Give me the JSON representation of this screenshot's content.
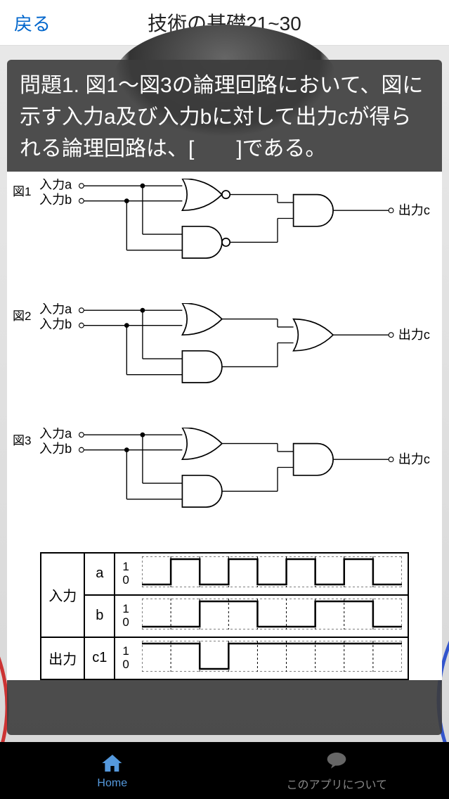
{
  "header": {
    "back_label": "戻る",
    "title": "技術の基礎21~30"
  },
  "question": {
    "text": "問題1. 図1～図3の論理回路において、図に示す入力a及び入力bに対して出力cが得られる論理回路は、[　　]である。"
  },
  "circuits": [
    {
      "label": "図1",
      "input_a": "入力a",
      "input_b": "入力b",
      "output": "出力c",
      "gate_top": "nor",
      "gate_bot": "nand",
      "gate_out": "and"
    },
    {
      "label": "図2",
      "input_a": "入力a",
      "input_b": "入力b",
      "output": "出力c",
      "gate_top": "or",
      "gate_bot": "and",
      "gate_out": "or"
    },
    {
      "label": "図3",
      "input_a": "入力a",
      "input_b": "入力b",
      "output": "出力c",
      "gate_top": "or",
      "gate_bot": "and",
      "gate_out": "and"
    }
  ],
  "timing": {
    "input_label": "入力",
    "output_label": "出力",
    "rows": [
      {
        "signal": "a",
        "levels": [
          "1",
          "0"
        ],
        "pattern": [
          0,
          1,
          0,
          1,
          0,
          1,
          0,
          1,
          0
        ]
      },
      {
        "signal": "b",
        "levels": [
          "1",
          "0"
        ],
        "pattern": [
          0,
          0,
          1,
          1,
          0,
          0,
          1,
          1,
          0
        ]
      },
      {
        "signal": "c1",
        "levels": [
          "1",
          "0"
        ],
        "pattern": [
          1,
          1,
          0,
          1,
          1,
          1,
          1,
          1,
          1
        ]
      }
    ]
  },
  "tabbar": {
    "home": "Home",
    "about": "このアプリについて"
  },
  "colors": {
    "accent": "#5599dd",
    "link": "#0066cc",
    "panel_bg": "rgba(60,60,60,0.9)"
  }
}
